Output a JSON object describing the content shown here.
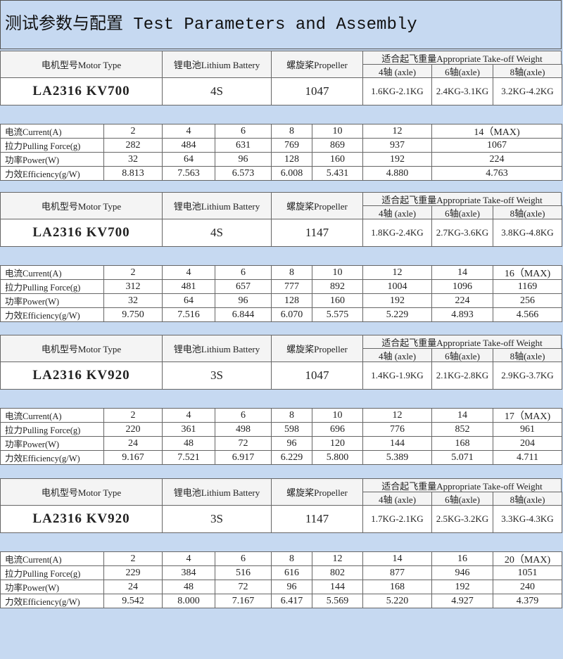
{
  "title": "测试参数与配置 Test Parameters and Assembly",
  "blocks": [
    {
      "header": {
        "motor_type": "电机型号Motor Type",
        "battery": "锂电池Lithium Battery",
        "propeller": "螺旋桨Propeller",
        "takeoff_weight": "适合起飞重量Appropriate Take-off Weight",
        "axles": [
          "4轴 (axle)",
          "6轴(axle)",
          "8轴(axle)"
        ]
      },
      "config": {
        "motor": "LA2316 KV700",
        "battery": "4S",
        "propeller": "1047",
        "weights": [
          "1.6KG-2.1KG",
          "2.4KG-3.1KG",
          "3.2KG-4.2KG"
        ]
      },
      "test": {
        "row_labels": [
          "电流Current(A)",
          "拉力Pulling Force(g)",
          "功率Power(W)",
          "力效Efficiency(g/W)"
        ],
        "rows": [
          [
            "2",
            "4",
            "6",
            "8",
            "10",
            "12",
            "14（MAX)"
          ],
          [
            "282",
            "484",
            "631",
            "769",
            "869",
            "937",
            "1067"
          ],
          [
            "32",
            "64",
            "96",
            "128",
            "160",
            "192",
            "224"
          ],
          [
            "8.813",
            "7.563",
            "6.573",
            "6.008",
            "5.431",
            "4.880",
            "4.763"
          ]
        ]
      }
    },
    {
      "header": {
        "motor_type": "电机型号Motor Type",
        "battery": "锂电池Lithium Battery",
        "propeller": "螺旋桨Propeller",
        "takeoff_weight": "适合起飞重量Appropriate Take-off Weight",
        "axles": [
          "4轴 (axle)",
          "6轴(axle)",
          "8轴(axle)"
        ]
      },
      "config": {
        "motor": "LA2316 KV700",
        "battery": "4S",
        "propeller": "1147",
        "weights": [
          "1.8KG-2.4KG",
          "2.7KG-3.6KG",
          "3.8KG-4.8KG"
        ]
      },
      "test": {
        "row_labels": [
          "电流Current(A)",
          "拉力Pulling Force(g)",
          "功率Power(W)",
          "力效Efficiency(g/W)"
        ],
        "rows": [
          [
            "2",
            "4",
            "6",
            "8",
            "10",
            "12",
            "14",
            "16（MAX)"
          ],
          [
            "312",
            "481",
            "657",
            "777",
            "892",
            "1004",
            "1096",
            "1169"
          ],
          [
            "32",
            "64",
            "96",
            "128",
            "160",
            "192",
            "224",
            "256"
          ],
          [
            "9.750",
            "7.516",
            "6.844",
            "6.070",
            "5.575",
            "5.229",
            "4.893",
            "4.566"
          ]
        ]
      }
    },
    {
      "header": {
        "motor_type": "电机型号Motor Type",
        "battery": "锂电池Lithium Battery",
        "propeller": "螺旋桨Propeller",
        "takeoff_weight": "适合起飞重量Appropriate Take-off Weight",
        "axles": [
          "4轴 (axle)",
          "6轴(axle)",
          "8轴(axle)"
        ]
      },
      "config": {
        "motor": "LA2316 KV920",
        "battery": "3S",
        "propeller": "1047",
        "weights": [
          "1.4KG-1.9KG",
          "2.1KG-2.8KG",
          "2.9KG-3.7KG"
        ]
      },
      "test": {
        "row_labels": [
          "电流Current(A)",
          "拉力Pulling Force(g)",
          "功率Power(W)",
          "力效Efficiency(g/W)"
        ],
        "rows": [
          [
            "2",
            "4",
            "6",
            "8",
            "10",
            "12",
            "14",
            "17（MAX)"
          ],
          [
            "220",
            "361",
            "498",
            "598",
            "696",
            "776",
            "852",
            "961"
          ],
          [
            "24",
            "48",
            "72",
            "96",
            "120",
            "144",
            "168",
            "204"
          ],
          [
            "9.167",
            "7.521",
            "6.917",
            "6.229",
            "5.800",
            "5.389",
            "5.071",
            "4.711"
          ]
        ]
      }
    },
    {
      "header": {
        "motor_type": "电机型号Motor Type",
        "battery": "锂电池Lithium Battery",
        "propeller": "螺旋桨Propeller",
        "takeoff_weight": "适合起飞重量Appropriate Take-off Weight",
        "axles": [
          "4轴 (axle)",
          "6轴(axle)",
          "8轴(axle)"
        ]
      },
      "config": {
        "motor": "LA2316 KV920",
        "battery": "3S",
        "propeller": "1147",
        "weights": [
          "1.7KG-2.1KG",
          "2.5KG-3.2KG",
          "3.3KG-4.3KG"
        ]
      },
      "test": {
        "row_labels": [
          "电流Current(A)",
          "拉力Pulling Force(g)",
          "功率Power(W)",
          "力效Efficiency(g/W)"
        ],
        "rows": [
          [
            "2",
            "4",
            "6",
            "8",
            "12",
            "14",
            "16",
            "20（MAX)"
          ],
          [
            "229",
            "384",
            "516",
            "616",
            "802",
            "877",
            "946",
            "1051"
          ],
          [
            "24",
            "48",
            "72",
            "96",
            "144",
            "168",
            "192",
            "240"
          ],
          [
            "9.542",
            "8.000",
            "7.167",
            "6.417",
            "5.569",
            "5.220",
            "4.927",
            "4.379"
          ]
        ]
      }
    }
  ]
}
